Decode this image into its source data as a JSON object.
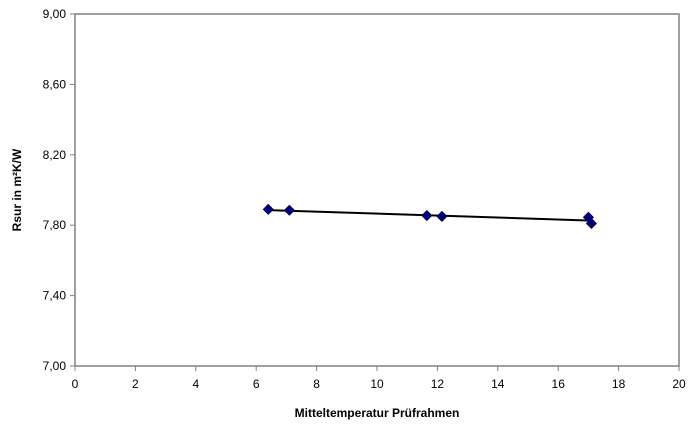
{
  "chart_data": {
    "type": "scatter",
    "title": "",
    "xlabel": "Mitteltemperatur Prüfrahmen",
    "ylabel": "Rsur in m²K/W",
    "xlim": [
      0,
      20
    ],
    "ylim": [
      7.0,
      9.0
    ],
    "x_ticks": [
      0,
      2,
      4,
      6,
      8,
      10,
      12,
      14,
      16,
      18,
      20
    ],
    "y_ticks": [
      7.0,
      7.4,
      7.8,
      8.2,
      8.6,
      9.0
    ],
    "x_tick_labels": [
      "0",
      "2",
      "4",
      "6",
      "8",
      "10",
      "12",
      "14",
      "16",
      "18",
      "20"
    ],
    "y_tick_labels": [
      "7,00",
      "7,40",
      "7,80",
      "8,20",
      "8,60",
      "9,00"
    ],
    "grid": false,
    "legend": "none",
    "series": [
      {
        "type": "scatter",
        "marker": "diamond",
        "color": "#000080",
        "points": [
          {
            "x": 6.4,
            "y": 7.89
          },
          {
            "x": 7.1,
            "y": 7.885
          },
          {
            "x": 11.65,
            "y": 7.855
          },
          {
            "x": 12.15,
            "y": 7.85
          },
          {
            "x": 17.0,
            "y": 7.845
          },
          {
            "x": 17.1,
            "y": 7.81
          }
        ]
      },
      {
        "type": "trendline",
        "color": "#000000",
        "points": [
          {
            "x": 6.4,
            "y": 7.886
          },
          {
            "x": 17.1,
            "y": 7.826
          }
        ]
      }
    ]
  }
}
